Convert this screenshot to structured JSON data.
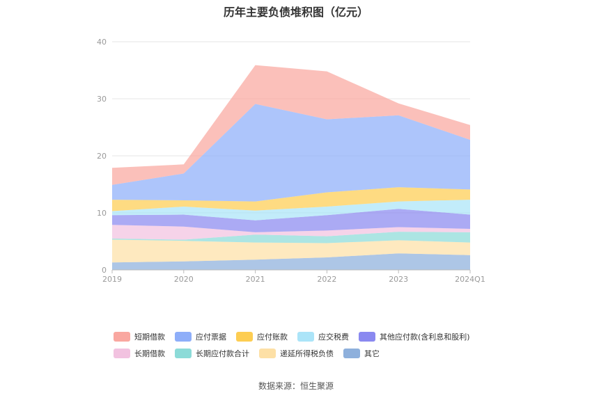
{
  "title": "历年主要负债堆积图（亿元）",
  "source": "数据来源：恒生聚源",
  "chart_data": {
    "type": "area",
    "stacked": true,
    "categories": [
      "2019",
      "2020",
      "2021",
      "2022",
      "2023",
      "2024Q1"
    ],
    "ylim": [
      0,
      40
    ],
    "yticks": [
      0,
      10,
      20,
      30,
      40
    ],
    "grid": true,
    "legend_position": "bottom",
    "series": [
      {
        "name": "其它",
        "color": "#8eb0dc",
        "values": [
          1.3,
          1.5,
          1.8,
          2.2,
          2.9,
          2.6
        ]
      },
      {
        "name": "递延所得税负债",
        "color": "#fde0a6",
        "values": [
          4.0,
          3.6,
          3.0,
          2.5,
          2.3,
          2.2
        ]
      },
      {
        "name": "长期应付款合计",
        "color": "#8cdbd8",
        "values": [
          0.2,
          0.2,
          1.4,
          1.2,
          1.5,
          1.8
        ]
      },
      {
        "name": "长期借款",
        "color": "#f2c2e0",
        "values": [
          2.4,
          2.3,
          0.4,
          1.0,
          0.8,
          0.6
        ]
      },
      {
        "name": "其他应付款(含利息和股利)",
        "color": "#8a89f0",
        "values": [
          1.7,
          2.1,
          2.1,
          2.7,
          3.2,
          2.5
        ]
      },
      {
        "name": "应交税费",
        "color": "#abe4f8",
        "values": [
          0.7,
          1.4,
          1.7,
          1.5,
          1.3,
          2.6
        ]
      },
      {
        "name": "应付账款",
        "color": "#fdcd52",
        "values": [
          2.0,
          1.1,
          1.6,
          2.5,
          2.5,
          1.8
        ]
      },
      {
        "name": "应付票据",
        "color": "#8eaef9",
        "values": [
          2.6,
          4.7,
          17.1,
          12.8,
          12.6,
          8.7
        ]
      },
      {
        "name": "短期借款",
        "color": "#f9a7a0",
        "values": [
          3.0,
          1.6,
          6.8,
          8.4,
          2.1,
          2.6
        ]
      }
    ]
  },
  "legend": {
    "row1": [
      "短期借款",
      "应付票据",
      "应付账款",
      "应交税费",
      "其他应付款(含利息和股利)"
    ],
    "row2": [
      "长期借款",
      "长期应付款合计",
      "递延所得税负债",
      "其它"
    ]
  }
}
